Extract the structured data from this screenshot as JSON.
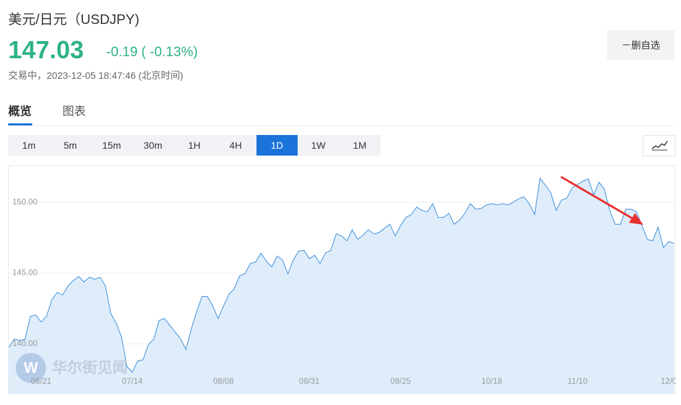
{
  "header": {
    "title": "美元/日元（USDJPY)",
    "price": "147.03",
    "change": "-0.19 ( -0.13%)",
    "status": "交易中，2023-12-05 18:47:46 (北京时间)",
    "button": "－删自选"
  },
  "tabs": [
    "概览",
    "图表"
  ],
  "intervals": [
    "1m",
    "5m",
    "15m",
    "30m",
    "1H",
    "4H",
    "1D",
    "1W",
    "1M"
  ],
  "watermark": "华尔街见闻",
  "chart_data": {
    "type": "area",
    "color": "#3a8fd9",
    "fill": "#dfedfb",
    "grid": true,
    "categories": [
      null,
      null,
      null,
      null,
      null,
      null,
      "06/21",
      null,
      null,
      null,
      null,
      null,
      null,
      null,
      null,
      null,
      null,
      null,
      null,
      null,
      null,
      null,
      null,
      "07/14",
      null,
      null,
      null,
      null,
      null,
      null,
      null,
      null,
      null,
      null,
      null,
      null,
      null,
      null,
      null,
      null,
      "08/08",
      null,
      null,
      null,
      null,
      null,
      null,
      null,
      null,
      null,
      null,
      null,
      null,
      null,
      null,
      null,
      "08/31",
      null,
      null,
      null,
      null,
      null,
      null,
      null,
      null,
      null,
      null,
      null,
      null,
      null,
      null,
      null,
      null,
      "09/25",
      null,
      null,
      null,
      null,
      null,
      null,
      null,
      null,
      null,
      null,
      null,
      null,
      null,
      null,
      null,
      null,
      "10/18",
      null,
      null,
      null,
      null,
      null,
      null,
      null,
      null,
      null,
      null,
      null,
      null,
      null,
      null,
      null,
      "11/10",
      null,
      null,
      null,
      null,
      null,
      null,
      null,
      null,
      null,
      null,
      null,
      null,
      null,
      null,
      null,
      null,
      "12/0",
      null
    ],
    "values": [
      139.76,
      140.34,
      140.24,
      140.34,
      141.94,
      142.04,
      141.55,
      141.94,
      143.11,
      143.64,
      143.45,
      144.08,
      144.47,
      144.76,
      144.37,
      144.71,
      144.56,
      144.71,
      144.08,
      142.14,
      141.46,
      140.49,
      138.4,
      138.01,
      138.79,
      138.88,
      139.95,
      140.34,
      141.65,
      141.8,
      141.31,
      140.83,
      140.34,
      139.61,
      141.07,
      142.28,
      143.35,
      143.35,
      142.67,
      141.8,
      142.67,
      143.5,
      143.88,
      144.81,
      144.95,
      145.68,
      145.78,
      146.41,
      145.83,
      145.44,
      146.21,
      145.92,
      144.95,
      145.92,
      146.55,
      146.6,
      146.02,
      146.26,
      145.68,
      146.41,
      146.6,
      147.77,
      147.62,
      147.28,
      148.06,
      147.38,
      147.67,
      148.06,
      147.77,
      147.86,
      148.16,
      148.45,
      147.62,
      148.35,
      148.93,
      149.13,
      149.66,
      149.42,
      149.32,
      149.9,
      148.93,
      148.93,
      149.22,
      148.45,
      148.74,
      149.22,
      149.9,
      149.51,
      149.56,
      149.81,
      149.9,
      149.81,
      149.9,
      149.81,
      150.0,
      150.24,
      150.39,
      149.9,
      149.13,
      151.7,
      151.21,
      150.68,
      149.42,
      150.15,
      150.29,
      151.02,
      151.26,
      151.5,
      151.65,
      150.53,
      151.41,
      150.92,
      149.42,
      148.45,
      148.45,
      149.51,
      149.51,
      149.32,
      148.35,
      147.38,
      147.28,
      148.25,
      146.8,
      147.23,
      147.09
    ],
    "ylim": [
      136.46,
      152.62
    ],
    "yticks": [
      {
        "value": 140,
        "label": "140.00"
      },
      {
        "value": 145,
        "label": "145.00"
      },
      {
        "value": 150,
        "label": "150.00"
      }
    ]
  }
}
